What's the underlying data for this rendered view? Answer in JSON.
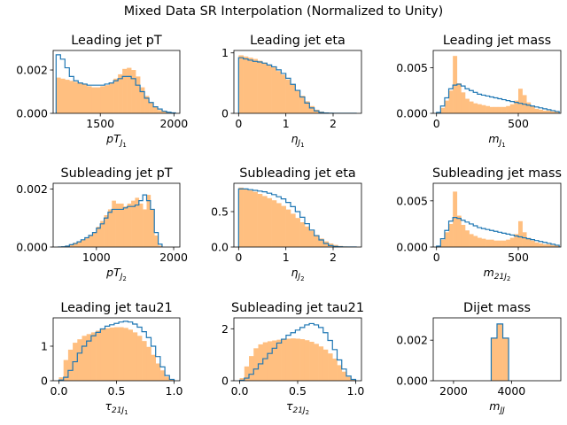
{
  "suptitle": "Mixed Data SR Interpolation (Normalized to Unity)",
  "colors": {
    "filled": "#ffbf80",
    "step": "#1f77b4"
  },
  "chart_data": [
    {
      "type": "histogram",
      "title": "Leading jet pT",
      "xlabel": {
        "base": "pT",
        "sub": "J",
        "subsub": "1"
      },
      "xlim": [
        1180,
        2040
      ],
      "ylim": [
        0,
        0.0029
      ],
      "xticks": [
        1500,
        2000
      ],
      "yticks": [
        0,
        0.002
      ],
      "ytick_labels": [
        "0.000",
        "0.002"
      ],
      "bin_edges": [
        1200,
        1230,
        1260,
        1290,
        1320,
        1350,
        1380,
        1410,
        1440,
        1470,
        1500,
        1530,
        1560,
        1590,
        1620,
        1650,
        1680,
        1710,
        1740,
        1770,
        1800,
        1830,
        1860,
        1890,
        1920,
        1950,
        1980,
        2010
      ],
      "filled": [
        0.00165,
        0.0016,
        0.00155,
        0.0015,
        0.00145,
        0.0014,
        0.00135,
        0.00125,
        0.0012,
        0.0012,
        0.00125,
        0.0013,
        0.0014,
        0.0016,
        0.0018,
        0.00205,
        0.0021,
        0.002,
        0.0017,
        0.0012,
        0.0008,
        0.0005,
        0.0003,
        0.00015,
        8e-05,
        4e-05,
        2e-05
      ],
      "step": [
        0.0027,
        0.0025,
        0.0021,
        0.0017,
        0.0015,
        0.0014,
        0.00135,
        0.0013,
        0.0013,
        0.0013,
        0.0013,
        0.00135,
        0.0014,
        0.0015,
        0.0016,
        0.0017,
        0.0017,
        0.0016,
        0.0013,
        0.001,
        0.0007,
        0.0005,
        0.0003,
        0.0002,
        0.0001,
        5e-05,
        2e-05
      ]
    },
    {
      "type": "histogram",
      "title": "Leading jet eta",
      "xlabel": {
        "base": "η",
        "sub": "J",
        "subsub": "1"
      },
      "xlim": [
        -0.1,
        2.6
      ],
      "ylim": [
        0,
        1.04
      ],
      "xticks": [
        0,
        1,
        2
      ],
      "yticks": [
        0,
        1
      ],
      "ytick_labels": [
        "0",
        "1"
      ],
      "bin_edges": [
        0,
        0.1,
        0.2,
        0.3,
        0.4,
        0.5,
        0.6,
        0.7,
        0.8,
        0.9,
        1.0,
        1.1,
        1.2,
        1.3,
        1.4,
        1.5,
        1.6,
        1.7,
        1.8,
        1.9,
        2.0,
        2.1,
        2.2,
        2.3,
        2.4,
        2.5
      ],
      "filled": [
        0.96,
        0.94,
        0.92,
        0.9,
        0.87,
        0.84,
        0.8,
        0.76,
        0.7,
        0.64,
        0.56,
        0.48,
        0.38,
        0.29,
        0.2,
        0.12,
        0.06,
        0.03,
        0.015,
        0.008,
        0.004,
        0.002,
        0.001,
        0.0005,
        0.0002
      ],
      "step": [
        0.92,
        0.9,
        0.88,
        0.86,
        0.85,
        0.83,
        0.8,
        0.77,
        0.72,
        0.66,
        0.58,
        0.48,
        0.38,
        0.27,
        0.17,
        0.09,
        0.04,
        0.015,
        0.006,
        0.003,
        0.001,
        0.0005,
        0.0002,
        0.0001,
        0.0
      ]
    },
    {
      "type": "histogram",
      "title": "Leading jet mass",
      "xlabel": {
        "base": "m",
        "sub": "J",
        "subsub": "1"
      },
      "xlim": [
        -20,
        760
      ],
      "ylim": [
        0,
        0.0069
      ],
      "xticks": [
        0,
        500
      ],
      "yticks": [
        0,
        0.005
      ],
      "ytick_labels": [
        "0.000",
        "0.005"
      ],
      "bin_edges": [
        0,
        25,
        50,
        75,
        100,
        125,
        150,
        175,
        200,
        225,
        250,
        275,
        300,
        325,
        350,
        375,
        400,
        425,
        450,
        475,
        500,
        525,
        550,
        575,
        600,
        625,
        650,
        675,
        700,
        725,
        750
      ],
      "filled": [
        0.0001,
        0.0006,
        0.0014,
        0.0025,
        0.0063,
        0.0033,
        0.0023,
        0.0016,
        0.0013,
        0.0011,
        0.001,
        0.0009,
        0.0008,
        0.0007,
        0.0007,
        0.0007,
        0.0007,
        0.0008,
        0.001,
        0.0014,
        0.0027,
        0.002,
        0.0012,
        0.0008,
        0.0005,
        0.0004,
        0.0003,
        0.0003,
        0.0002,
        0.0002
      ],
      "step": [
        0.0001,
        0.0008,
        0.0017,
        0.0027,
        0.0031,
        0.0032,
        0.003,
        0.0027,
        0.0025,
        0.0023,
        0.0021,
        0.002,
        0.0019,
        0.0018,
        0.0017,
        0.0016,
        0.0015,
        0.0014,
        0.0013,
        0.0012,
        0.0011,
        0.001,
        0.0009,
        0.0008,
        0.0007,
        0.0006,
        0.0005,
        0.0004,
        0.0003,
        0.0002
      ]
    },
    {
      "type": "histogram",
      "title": "Subleading jet pT",
      "xlabel": {
        "base": "pT",
        "sub": "J",
        "subsub": "2"
      },
      "xlim": [
        440,
        2080
      ],
      "ylim": [
        0,
        0.0022
      ],
      "xticks": [
        1000,
        2000
      ],
      "yticks": [
        0,
        0.002
      ],
      "ytick_labels": [
        "0.000",
        "0.002"
      ],
      "bin_edges": [
        500,
        550,
        600,
        650,
        700,
        750,
        800,
        850,
        900,
        950,
        1000,
        1050,
        1100,
        1150,
        1200,
        1250,
        1300,
        1350,
        1400,
        1450,
        1500,
        1550,
        1600,
        1650,
        1700,
        1750,
        1800,
        1850
      ],
      "filled": [
        0.0,
        2e-05,
        5e-05,
        0.0001,
        0.00015,
        0.0002,
        0.00025,
        0.0003,
        0.0004,
        0.0005,
        0.0007,
        0.0009,
        0.0011,
        0.0013,
        0.0016,
        0.0015,
        0.0015,
        0.0014,
        0.0015,
        0.0016,
        0.0017,
        0.0015,
        0.0013,
        0.0018,
        0.0013,
        0.0004,
        5e-05
      ],
      "step": [
        0.0,
        1e-05,
        3e-05,
        8e-05,
        0.00012,
        0.00018,
        0.00025,
        0.00032,
        0.0004,
        0.0005,
        0.00065,
        0.0008,
        0.001,
        0.0012,
        0.0013,
        0.0013,
        0.0013,
        0.00135,
        0.0014,
        0.0014,
        0.00145,
        0.0016,
        0.0018,
        0.0016,
        0.0013,
        0.0005,
        0.0001
      ]
    },
    {
      "type": "histogram",
      "title": "Subleading jet eta",
      "xlabel": {
        "base": "η",
        "sub": "J",
        "subsub": "2"
      },
      "xlim": [
        -0.1,
        2.6
      ],
      "ylim": [
        0,
        0.9
      ],
      "xticks": [
        0,
        1,
        2
      ],
      "yticks": [
        0,
        0.5
      ],
      "ytick_labels": [
        "0.0",
        "0.5"
      ],
      "bin_edges": [
        0,
        0.1,
        0.2,
        0.3,
        0.4,
        0.5,
        0.6,
        0.7,
        0.8,
        0.9,
        1.0,
        1.1,
        1.2,
        1.3,
        1.4,
        1.5,
        1.6,
        1.7,
        1.8,
        1.9,
        2.0,
        2.1,
        2.2,
        2.3,
        2.4,
        2.5
      ],
      "filled": [
        0.84,
        0.82,
        0.8,
        0.78,
        0.75,
        0.72,
        0.69,
        0.66,
        0.62,
        0.58,
        0.53,
        0.47,
        0.41,
        0.35,
        0.29,
        0.23,
        0.17,
        0.12,
        0.08,
        0.05,
        0.03,
        0.015,
        0.008,
        0.004,
        0.002
      ],
      "step": [
        0.82,
        0.82,
        0.81,
        0.8,
        0.79,
        0.78,
        0.76,
        0.74,
        0.71,
        0.68,
        0.63,
        0.57,
        0.5,
        0.42,
        0.33,
        0.24,
        0.16,
        0.1,
        0.05,
        0.02,
        0.008,
        0.003,
        0.001,
        0.0005,
        0.0
      ]
    },
    {
      "type": "histogram",
      "title": "Subleading jet mass",
      "xlabel": {
        "base": "m",
        "sub": "21J",
        "subsub": "2"
      },
      "xlim": [
        -20,
        760
      ],
      "ylim": [
        0,
        0.0069
      ],
      "xticks": [
        0,
        500
      ],
      "yticks": [
        0,
        0.005
      ],
      "ytick_labels": [
        "0.000",
        "0.005"
      ],
      "bin_edges": [
        0,
        25,
        50,
        75,
        100,
        125,
        150,
        175,
        200,
        225,
        250,
        275,
        300,
        325,
        350,
        375,
        400,
        425,
        450,
        475,
        500,
        525,
        550,
        575,
        600,
        625,
        650,
        675,
        700,
        725,
        750
      ],
      "filled": [
        0.0001,
        0.0008,
        0.0016,
        0.0025,
        0.006,
        0.0034,
        0.0024,
        0.0018,
        0.0014,
        0.0012,
        0.001,
        0.0009,
        0.0008,
        0.0008,
        0.0007,
        0.0007,
        0.0007,
        0.0008,
        0.001,
        0.0014,
        0.0028,
        0.0016,
        0.001,
        0.0007,
        0.0005,
        0.0004,
        0.0003,
        0.0003,
        0.0002,
        0.0002
      ],
      "step": [
        0.0001,
        0.0009,
        0.0018,
        0.0028,
        0.0032,
        0.0031,
        0.0029,
        0.0027,
        0.0025,
        0.0023,
        0.0021,
        0.002,
        0.0019,
        0.0018,
        0.0017,
        0.0016,
        0.0015,
        0.0014,
        0.0013,
        0.0012,
        0.0011,
        0.001,
        0.0009,
        0.0008,
        0.0007,
        0.0006,
        0.0005,
        0.0004,
        0.0003,
        0.0002
      ]
    },
    {
      "type": "histogram",
      "title": "Leading jet tau21",
      "xlabel": {
        "base": "τ",
        "sub": "21J",
        "subsub": "1"
      },
      "xlim": [
        -0.05,
        1.05
      ],
      "ylim": [
        0,
        1.82
      ],
      "xticks": [
        0,
        0.5,
        1
      ],
      "xtick_labels": [
        "0.0",
        "0.5",
        "1.0"
      ],
      "yticks": [
        0,
        1
      ],
      "ytick_labels": [
        "0",
        "1"
      ],
      "bin_edges": [
        0,
        0.04,
        0.08,
        0.12,
        0.16,
        0.2,
        0.24,
        0.28,
        0.32,
        0.36,
        0.4,
        0.44,
        0.48,
        0.52,
        0.56,
        0.6,
        0.64,
        0.68,
        0.72,
        0.76,
        0.8,
        0.84,
        0.88,
        0.92,
        0.96,
        1.0
      ],
      "filled": [
        0.1,
        0.6,
        0.9,
        1.1,
        1.2,
        1.3,
        1.35,
        1.4,
        1.45,
        1.5,
        1.52,
        1.54,
        1.55,
        1.55,
        1.53,
        1.48,
        1.4,
        1.3,
        1.15,
        0.98,
        0.75,
        0.5,
        0.3,
        0.12,
        0.04
      ],
      "step": [
        0.02,
        0.1,
        0.3,
        0.55,
        0.8,
        1.0,
        1.15,
        1.3,
        1.4,
        1.5,
        1.58,
        1.62,
        1.66,
        1.7,
        1.72,
        1.7,
        1.64,
        1.55,
        1.42,
        1.25,
        1.0,
        0.7,
        0.4,
        0.15,
        0.04
      ]
    },
    {
      "type": "histogram",
      "title": "Subleading jet tau21",
      "xlabel": {
        "base": "τ",
        "sub": "21J",
        "subsub": "2"
      },
      "xlim": [
        -0.05,
        1.05
      ],
      "ylim": [
        0,
        2.42
      ],
      "xticks": [
        0,
        0.5,
        1
      ],
      "xtick_labels": [
        "0.0",
        "0.5",
        "1.0"
      ],
      "yticks": [
        0,
        2
      ],
      "ytick_labels": [
        "0",
        "2"
      ],
      "bin_edges": [
        0,
        0.04,
        0.08,
        0.12,
        0.16,
        0.2,
        0.24,
        0.28,
        0.32,
        0.36,
        0.4,
        0.44,
        0.48,
        0.52,
        0.56,
        0.6,
        0.64,
        0.68,
        0.72,
        0.76,
        0.8,
        0.84,
        0.88,
        0.92,
        0.96,
        1.0
      ],
      "filled": [
        0.1,
        0.55,
        0.95,
        1.25,
        1.4,
        1.48,
        1.52,
        1.55,
        1.58,
        1.6,
        1.62,
        1.63,
        1.62,
        1.6,
        1.56,
        1.5,
        1.42,
        1.32,
        1.2,
        1.05,
        0.85,
        0.6,
        0.35,
        0.15,
        0.05
      ],
      "step": [
        0.02,
        0.1,
        0.25,
        0.45,
        0.65,
        0.85,
        1.05,
        1.25,
        1.45,
        1.6,
        1.75,
        1.85,
        1.95,
        2.05,
        2.15,
        2.2,
        2.15,
        2.05,
        1.85,
        1.55,
        1.2,
        0.8,
        0.45,
        0.18,
        0.05
      ]
    },
    {
      "type": "histogram",
      "title": "Dijet mass",
      "xlabel": {
        "base": "m",
        "sub": "JJ",
        "subsub": ""
      },
      "xlim": [
        1300,
        5700
      ],
      "ylim": [
        0,
        0.0031
      ],
      "xticks": [
        2000,
        4000
      ],
      "yticks": [
        0,
        0.002
      ],
      "ytick_labels": [
        "0.000",
        "0.002"
      ],
      "bin_edges": [
        3300,
        3500,
        3700,
        3900
      ],
      "filled": [
        0.0021,
        0.0028,
        0.0021
      ],
      "step": [
        0.0021,
        0.0028,
        0.0021
      ]
    }
  ]
}
